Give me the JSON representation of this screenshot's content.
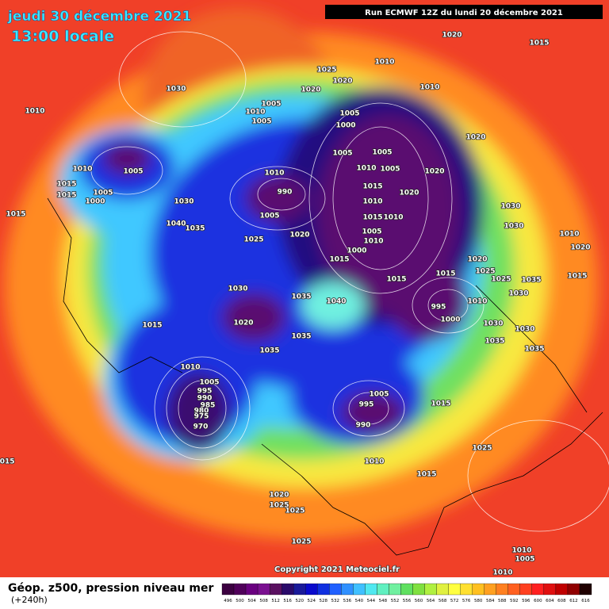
{
  "header": {
    "date": "jeudi 30 décembre 2021",
    "time": "13:00 locale",
    "run": "Run ECMWF 12Z du lundi 20 décembre 2021"
  },
  "isobar_labels": [
    1020,
    1015,
    1010,
    1025,
    1020,
    1030,
    1020,
    1010,
    1005,
    1010,
    1010,
    1005,
    1005,
    1000,
    1020,
    1005,
    1005,
    1010,
    1005,
    1010,
    1005,
    1020,
    1010,
    1015,
    1015,
    990,
    1005,
    1015,
    1020,
    1000,
    1030,
    1010,
    1030,
    1005,
    1015,
    1015,
    1010,
    1040,
    1035,
    1030,
    1020,
    1005,
    1010,
    1010,
    1025,
    1020,
    1000,
    1015,
    1020,
    1025,
    1015,
    1015,
    1025,
    1035,
    1015,
    1030,
    1035,
    1040,
    995,
    1010,
    1030,
    1015,
    1020,
    1000,
    1030,
    1030,
    1035,
    1035,
    1035,
    1035,
    1010,
    1005,
    995,
    990,
    985,
    980,
    975,
    970,
    1005,
    995,
    990,
    1015,
    1025,
    1010,
    1015,
    1015,
    1020,
    1025,
    1025,
    1025,
    1010,
    1005,
    1010,
    1005
  ],
  "copyright": "Copyright 2021 Meteociel.fr",
  "footer": {
    "title": "Géop. z500, pression niveau mer",
    "subtitle": "(+240h)"
  },
  "legend": {
    "values": [
      496,
      500,
      504,
      508,
      512,
      516,
      520,
      524,
      528,
      532,
      536,
      540,
      544,
      548,
      552,
      556,
      560,
      564,
      568,
      572,
      576,
      580,
      584,
      588,
      592,
      596,
      600,
      604,
      608,
      612,
      616
    ],
    "colors": [
      "#3c0040",
      "#50005a",
      "#6a0080",
      "#7a1090",
      "#5a1060",
      "#2a0a6a",
      "#1a1a9a",
      "#0a0acc",
      "#1030e0",
      "#2060ff",
      "#3090ff",
      "#40c0ff",
      "#50e8f0",
      "#60f0c0",
      "#70f0a0",
      "#60e060",
      "#80e040",
      "#b0f040",
      "#e0f040",
      "#ffff40",
      "#ffe030",
      "#ffc020",
      "#ffa020",
      "#ff8020",
      "#ff6020",
      "#ff4020",
      "#ff2020",
      "#e01010",
      "#c00000",
      "#900000",
      "#200000"
    ]
  }
}
